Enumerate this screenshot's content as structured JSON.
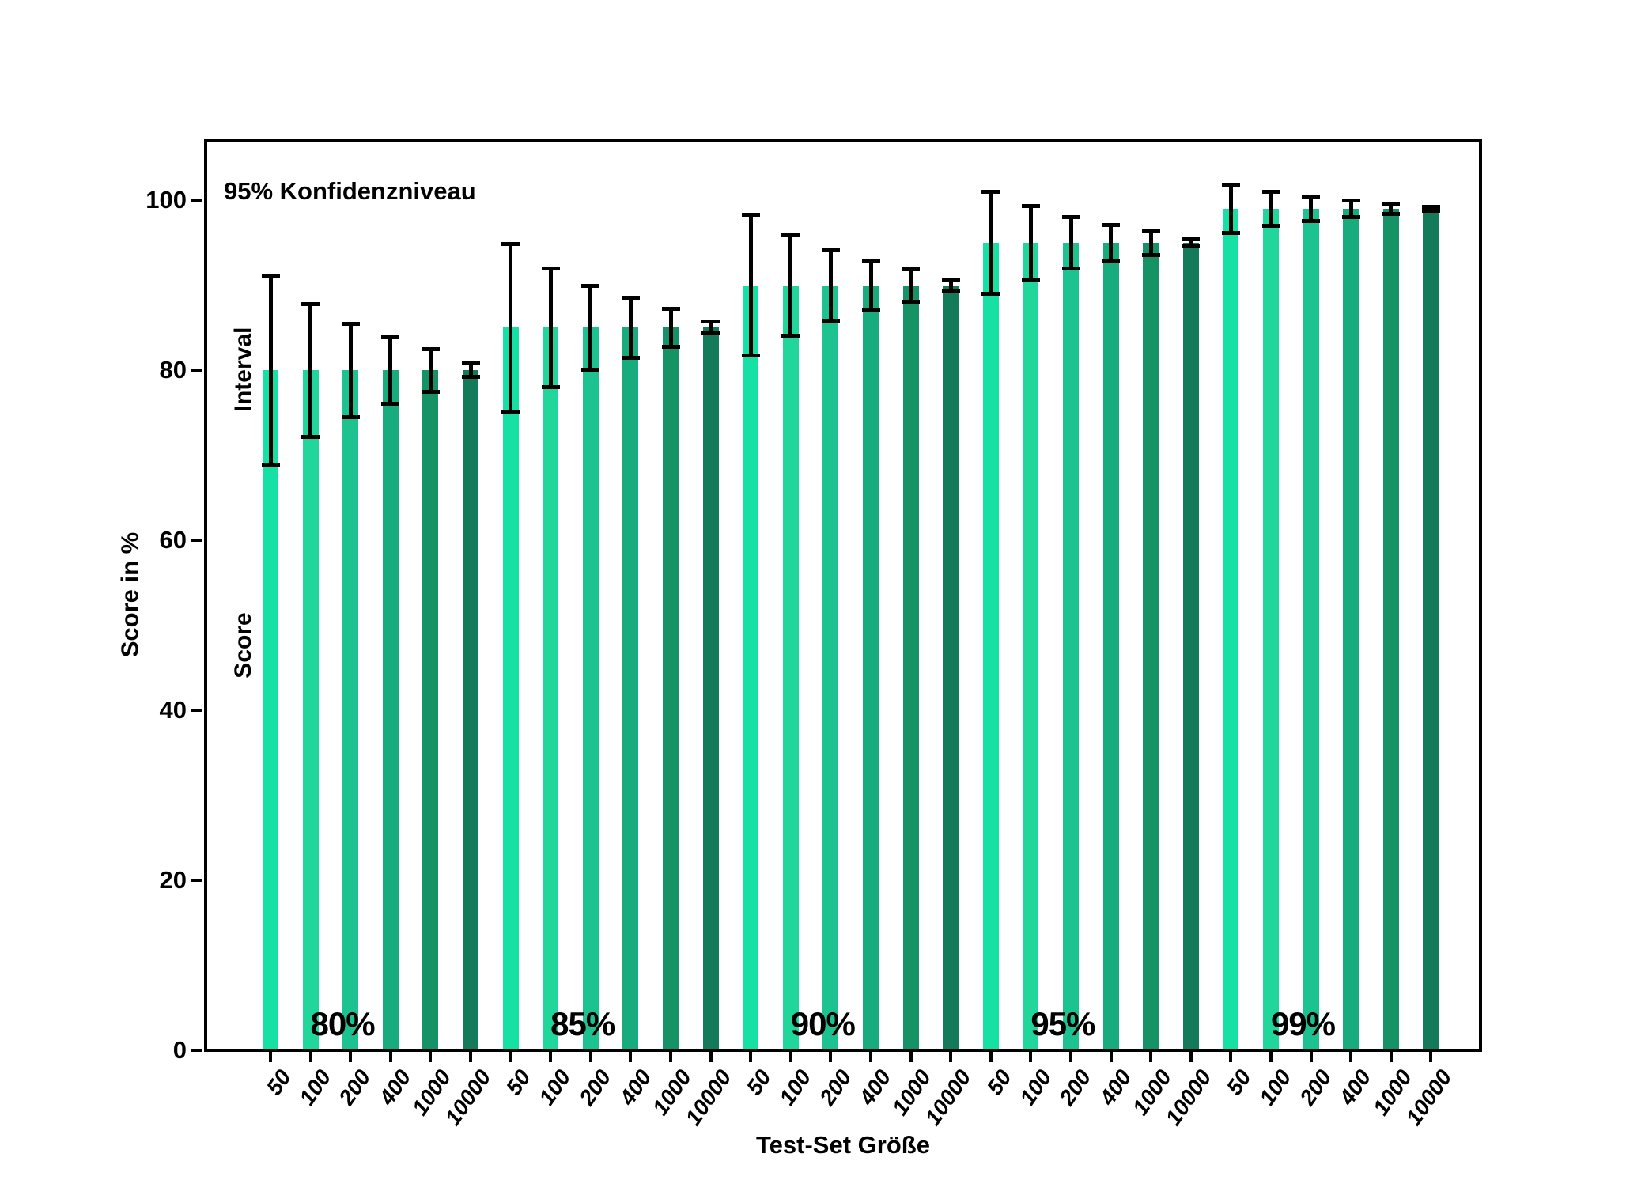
{
  "chart_data": {
    "type": "bar",
    "xlabel": "Test-Set Größe",
    "ylabel": "Score in %",
    "annotations": {
      "confidence": "95% Konfidenzniveau",
      "interval": "Interval",
      "score": "Score"
    },
    "categories": [
      "50",
      "100",
      "200",
      "400",
      "1000",
      "10000"
    ],
    "yticks": [
      0,
      20,
      40,
      60,
      80,
      100
    ],
    "ylim": [
      0,
      107
    ],
    "grid": false,
    "legend": "none",
    "error_bar_color": "#000000",
    "bar_colors": [
      "#15E1A4",
      "#20D69B",
      "#1CC28F",
      "#18AB7D",
      "#159367",
      "#137B59"
    ],
    "groups": [
      {
        "label": "80%",
        "score": 80,
        "errors": [
          11.1,
          7.8,
          5.5,
          3.9,
          2.5,
          0.8
        ]
      },
      {
        "label": "85%",
        "score": 85,
        "errors": [
          9.9,
          7.0,
          4.9,
          3.5,
          2.2,
          0.7
        ]
      },
      {
        "label": "90%",
        "score": 90,
        "errors": [
          8.3,
          5.9,
          4.2,
          2.9,
          1.9,
          0.6
        ]
      },
      {
        "label": "95%",
        "score": 95,
        "errors": [
          6.0,
          4.3,
          3.0,
          2.1,
          1.4,
          0.4
        ]
      },
      {
        "label": "99%",
        "score": 99,
        "errors": [
          2.8,
          2.0,
          1.4,
          1.0,
          0.6,
          0.2
        ]
      }
    ]
  }
}
